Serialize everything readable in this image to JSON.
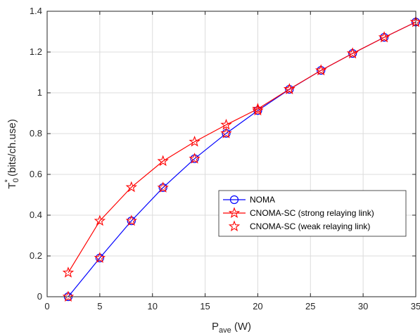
{
  "chart_data": {
    "type": "line",
    "xlabel": {
      "main": "P",
      "sub": "ave",
      "unit": " (W)"
    },
    "ylabel": {
      "main": "T",
      "sub": "0",
      "sup": "*",
      "unit": " (bits/ch.use)"
    },
    "xlim": [
      0,
      35
    ],
    "ylim": [
      0,
      1.4
    ],
    "xticks": [
      0,
      5,
      10,
      15,
      20,
      25,
      30,
      35
    ],
    "xtick_labels": [
      "0",
      "5",
      "10",
      "15",
      "20",
      "25",
      "30",
      "35"
    ],
    "yticks": [
      0,
      0.2,
      0.4,
      0.6,
      0.8,
      1.0,
      1.2,
      1.4
    ],
    "ytick_labels": [
      "0",
      "0.2",
      "0.4",
      "0.6",
      "0.8",
      "1",
      "1.2",
      "1.4"
    ],
    "grid": true,
    "legend_position": "lower-right",
    "x": [
      2,
      5,
      8,
      11,
      14,
      17,
      20,
      23,
      26,
      29,
      32,
      35
    ],
    "series": [
      {
        "name": "NOMA",
        "color": "#0000ff",
        "marker": "circle",
        "line": true,
        "values": [
          0.0,
          0.19,
          0.372,
          0.535,
          0.677,
          0.801,
          0.913,
          1.017,
          1.11,
          1.193,
          1.272,
          1.347
        ]
      },
      {
        "name": "CNOMA-SC (strong relaying link)",
        "color": "#ff0000",
        "marker": "pentagram",
        "line": true,
        "values": [
          0.118,
          0.372,
          0.537,
          0.665,
          0.76,
          0.843,
          0.921,
          1.018,
          1.11,
          1.193,
          1.272,
          1.347
        ]
      },
      {
        "name": "CNOMA-SC (weak relaying link)",
        "color": "#ff0000",
        "marker": "pentagram",
        "line": false,
        "values": [
          0.0,
          0.19,
          0.372,
          0.535,
          0.677,
          0.801,
          0.913,
          1.017,
          1.11,
          1.193,
          1.272,
          1.347
        ]
      }
    ]
  }
}
